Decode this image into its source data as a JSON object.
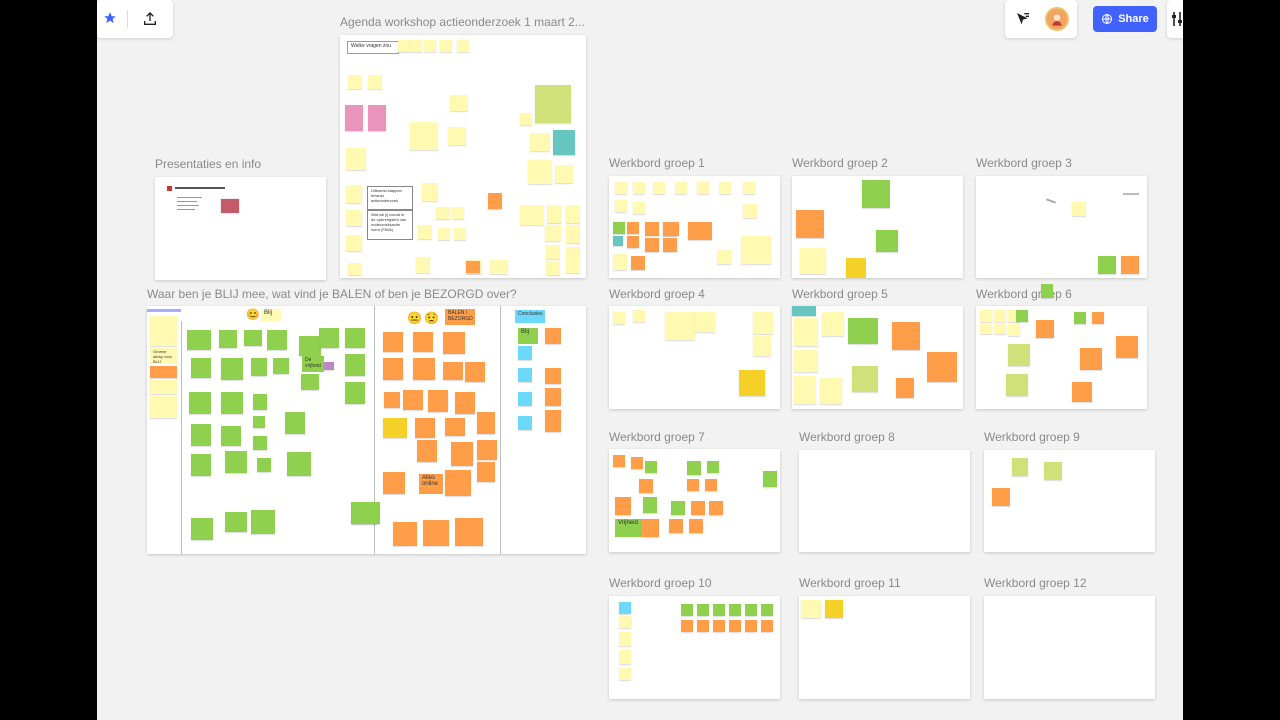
{
  "toolbar": {
    "star_icon": "star-icon",
    "export_icon": "upload-icon",
    "cursor_icon": "cursor-icon",
    "share_label": "Share",
    "settings_icon": "sliders-icon",
    "colors": {
      "accent": "#4262ff",
      "star": "#4262ff"
    }
  },
  "frames": {
    "agenda": "Agenda workshop actieonderzoek 1 maart 2...",
    "presentaties": "Presentaties en info",
    "blij": "Waar ben je BLIJ mee, wat vind je BALEN of ben je BEZORGD over?",
    "groups": [
      "Werkbord groep 1",
      "Werkbord groep 2",
      "Werkbord groep 3",
      "Werkbord groep 4",
      "Werkbord groep 5",
      "Werkbord groep 6",
      "Werkbord groep 7",
      "Werkbord groep 8",
      "Werkbord groep 9",
      "Werkbord groep 10",
      "Werkbord groep 11",
      "Werkbord groep 12"
    ]
  },
  "agenda_board": {
    "box1": "Welke vragen zou",
    "box2": "Uitkomst stappen bewust actieonderzoek",
    "box3": "Wat zie jij vooral in de opbrengsten van onderzoeksactie vorm (FAVA)"
  },
  "blij_board": {
    "blij": "Blij",
    "balen": "BALEN / BEZORGD",
    "conclusies": "Conclusies",
    "conclusies_blij": "Blij",
    "groene_sticky": "Groene sticky voor BLIJ",
    "vrijheid": "De vrijheid",
    "alles_online": "Alles online"
  },
  "group7": {
    "vrijheid": "Vrijheid"
  }
}
